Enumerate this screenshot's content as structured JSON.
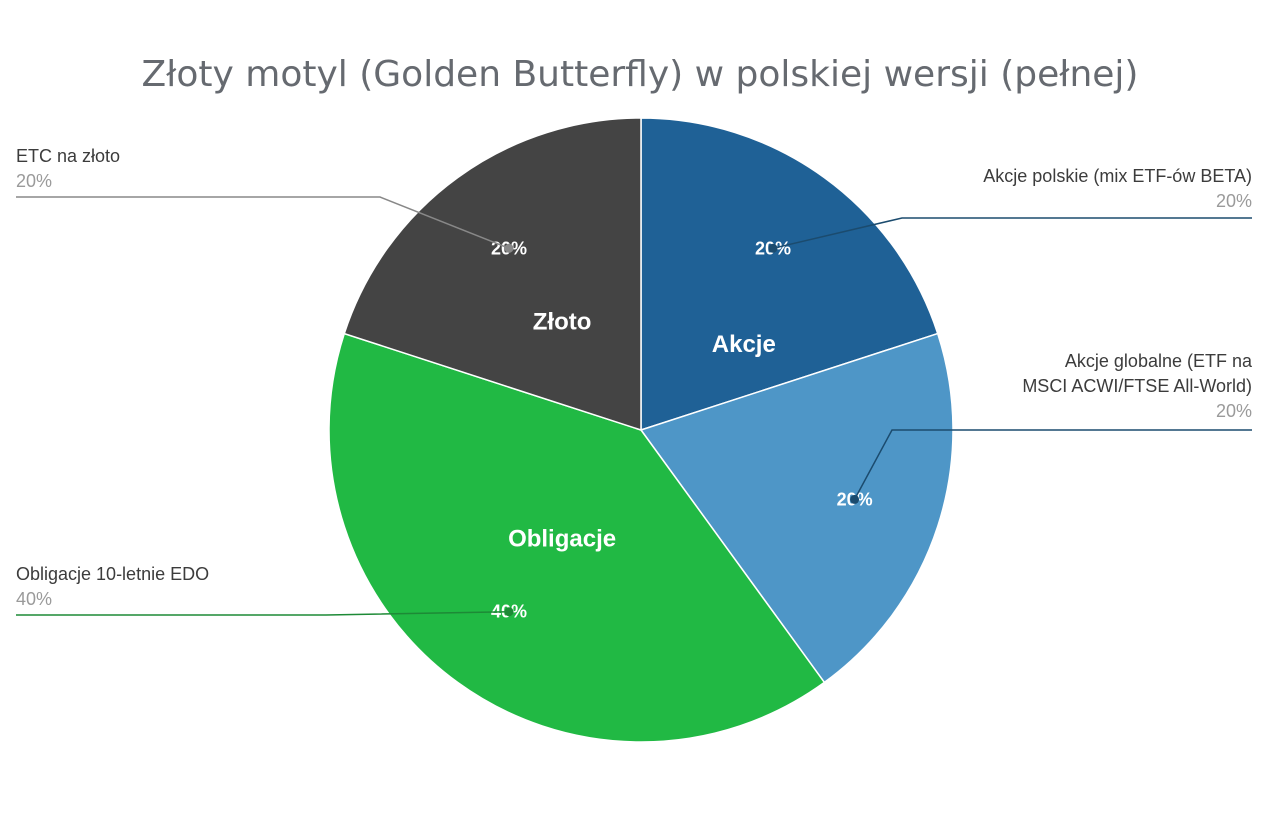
{
  "chart_data": {
    "type": "pie",
    "title": "Złoty motyl (Golden Butterfly) w polskiej wersji (pełnej)",
    "slices": [
      {
        "name_lines": [
          "Akcje polskie (mix ETF-ów BETA)"
        ],
        "value": 20,
        "label": "20%",
        "color": "#1f6196"
      },
      {
        "name_lines": [
          "Akcje globalne (ETF na",
          "MSCI ACWI/FTSE All-World)"
        ],
        "value": 20,
        "label": "20%",
        "color": "#4e96c7"
      },
      {
        "name_lines": [
          "Obligacje 10-letnie EDO"
        ],
        "value": 40,
        "label": "40%",
        "color": "#21b944"
      },
      {
        "name_lines": [
          "ETC na złoto"
        ],
        "value": 20,
        "label": "20%",
        "color": "#444444"
      }
    ],
    "groups": [
      {
        "label": "Akcje",
        "slices": [
          0,
          1
        ]
      },
      {
        "label": "Obligacje",
        "slices": [
          2
        ]
      },
      {
        "label": "Złoto",
        "slices": [
          3
        ]
      }
    ],
    "start_angle_deg": 0,
    "direction": "clockwise",
    "legend_style": "callout-lines"
  }
}
